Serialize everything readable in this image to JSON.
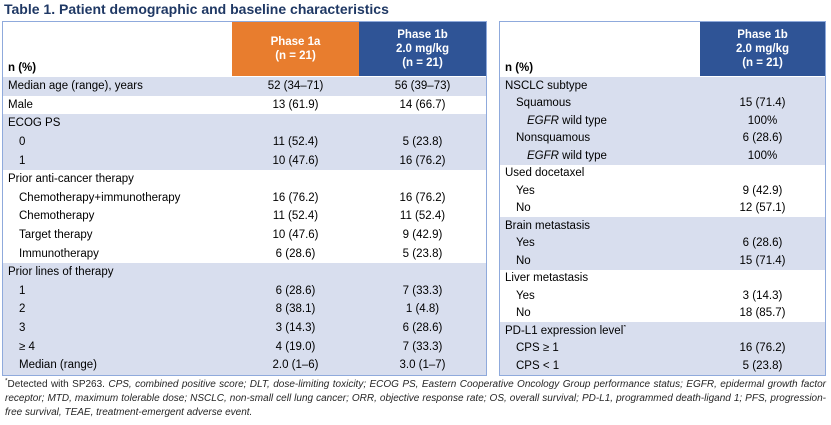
{
  "title": "Table 1. Patient demographic and baseline characteristics",
  "colors": {
    "orange": "#E87D2E",
    "blue": "#2F5496",
    "row_shade": "#D8DEEE",
    "table_border": "#8FAADC",
    "title_text": "#1F3864",
    "footnote_text": "#262626"
  },
  "left_table": {
    "header": {
      "label": "n (%)",
      "col1": "Phase 1a\n(n = 21)",
      "col2": "Phase 1b\n2.0 mg/kg\n(n = 21)"
    },
    "rows": [
      {
        "label": "Median age (range), years",
        "indent": 0,
        "values": [
          "52 (34–71)",
          "56 (39–73)"
        ],
        "shade": true
      },
      {
        "label": "Male",
        "indent": 0,
        "values": [
          "13 (61.9)",
          "14 (66.7)"
        ],
        "shade": false
      },
      {
        "label": "ECOG PS",
        "indent": 0,
        "values": [
          "",
          ""
        ],
        "shade": true
      },
      {
        "label": "0",
        "indent": 1,
        "values": [
          "11 (52.4)",
          "5 (23.8)"
        ],
        "shade": true
      },
      {
        "label": "1",
        "indent": 1,
        "values": [
          "10 (47.6)",
          "16 (76.2)"
        ],
        "shade": true
      },
      {
        "label": "Prior anti-cancer therapy",
        "indent": 0,
        "values": [
          "",
          ""
        ],
        "shade": false
      },
      {
        "label": "Chemotherapy+immunotherapy",
        "indent": 1,
        "values": [
          "16 (76.2)",
          "16 (76.2)"
        ],
        "shade": false
      },
      {
        "label": "Chemotherapy",
        "indent": 1,
        "values": [
          "11 (52.4)",
          "11 (52.4)"
        ],
        "shade": false
      },
      {
        "label": "Target therapy",
        "indent": 1,
        "values": [
          "10 (47.6)",
          "9 (42.9)"
        ],
        "shade": false
      },
      {
        "label": "Immunotherapy",
        "indent": 1,
        "values": [
          "6 (28.6)",
          "5 (23.8)"
        ],
        "shade": false
      },
      {
        "label": "Prior lines of therapy",
        "indent": 0,
        "values": [
          "",
          ""
        ],
        "shade": true
      },
      {
        "label": "1",
        "indent": 1,
        "values": [
          "6 (28.6)",
          "7 (33.3)"
        ],
        "shade": true
      },
      {
        "label": "2",
        "indent": 1,
        "values": [
          "8 (38.1)",
          "1 (4.8)"
        ],
        "shade": true
      },
      {
        "label": "3",
        "indent": 1,
        "values": [
          "3 (14.3)",
          "6 (28.6)"
        ],
        "shade": true
      },
      {
        "label": "≥ 4",
        "indent": 1,
        "values": [
          "4 (19.0)",
          "7 (33.3)"
        ],
        "shade": true
      },
      {
        "label": "Median (range)",
        "indent": 1,
        "values": [
          "2.0 (1–6)",
          "3.0 (1–7)"
        ],
        "shade": true
      }
    ]
  },
  "right_table": {
    "header": {
      "label": "n (%)",
      "col1": "Phase 1b\n2.0 mg/kg\n(n = 21)"
    },
    "rows": [
      {
        "label": "NSCLC subtype",
        "indent": 0,
        "values": [
          ""
        ],
        "shade": true
      },
      {
        "label": "Squamous",
        "indent": 1,
        "values": [
          "15 (71.4)"
        ],
        "shade": true
      },
      {
        "italic_lead": "EGFR",
        "label": " wild type",
        "indent": 2,
        "values": [
          "100%"
        ],
        "shade": true
      },
      {
        "label": "Nonsquamous",
        "indent": 1,
        "values": [
          "6 (28.6)"
        ],
        "shade": true
      },
      {
        "italic_lead": "EGFR",
        "label": " wild type",
        "indent": 2,
        "values": [
          "100%"
        ],
        "shade": true
      },
      {
        "label": "Used docetaxel",
        "indent": 0,
        "values": [
          ""
        ],
        "shade": false
      },
      {
        "label": "Yes",
        "indent": 1,
        "values": [
          "9 (42.9)"
        ],
        "shade": false
      },
      {
        "label": "No",
        "indent": 1,
        "values": [
          "12 (57.1)"
        ],
        "shade": false
      },
      {
        "label": "Brain metastasis",
        "indent": 0,
        "values": [
          ""
        ],
        "shade": true
      },
      {
        "label": "Yes",
        "indent": 1,
        "values": [
          "6 (28.6)"
        ],
        "shade": true
      },
      {
        "label": "No",
        "indent": 1,
        "values": [
          "15 (71.4)"
        ],
        "shade": true
      },
      {
        "label": "Liver metastasis",
        "indent": 0,
        "values": [
          ""
        ],
        "shade": false
      },
      {
        "label": "Yes",
        "indent": 1,
        "values": [
          "3 (14.3)"
        ],
        "shade": false
      },
      {
        "label": "No",
        "indent": 1,
        "values": [
          "18 (85.7)"
        ],
        "shade": false
      },
      {
        "label": "PD-L1 expression level",
        "sup": "*",
        "indent": 0,
        "values": [
          ""
        ],
        "shade": true
      },
      {
        "label": "CPS ≥ 1",
        "indent": 1,
        "values": [
          "16 (76.2)"
        ],
        "shade": true
      },
      {
        "label": "CPS < 1",
        "indent": 1,
        "values": [
          "5 (23.8)"
        ],
        "shade": true
      }
    ]
  },
  "footnote": {
    "marker": "*",
    "normal": "Detected with SP263. ",
    "italic": "CPS, combined positive score; DLT, dose-limiting toxicity; ECOG PS, Eastern Cooperative Oncology Group performance status; EGFR, epidermal growth factor receptor; MTD, maximum tolerable dose; NSCLC, non-small cell lung cancer; ORR, objective response rate; OS, overall survival; PD-L1, programmed death-ligand 1; PFS, progression-free survival, TEAE, treatment-emergent adverse event."
  }
}
